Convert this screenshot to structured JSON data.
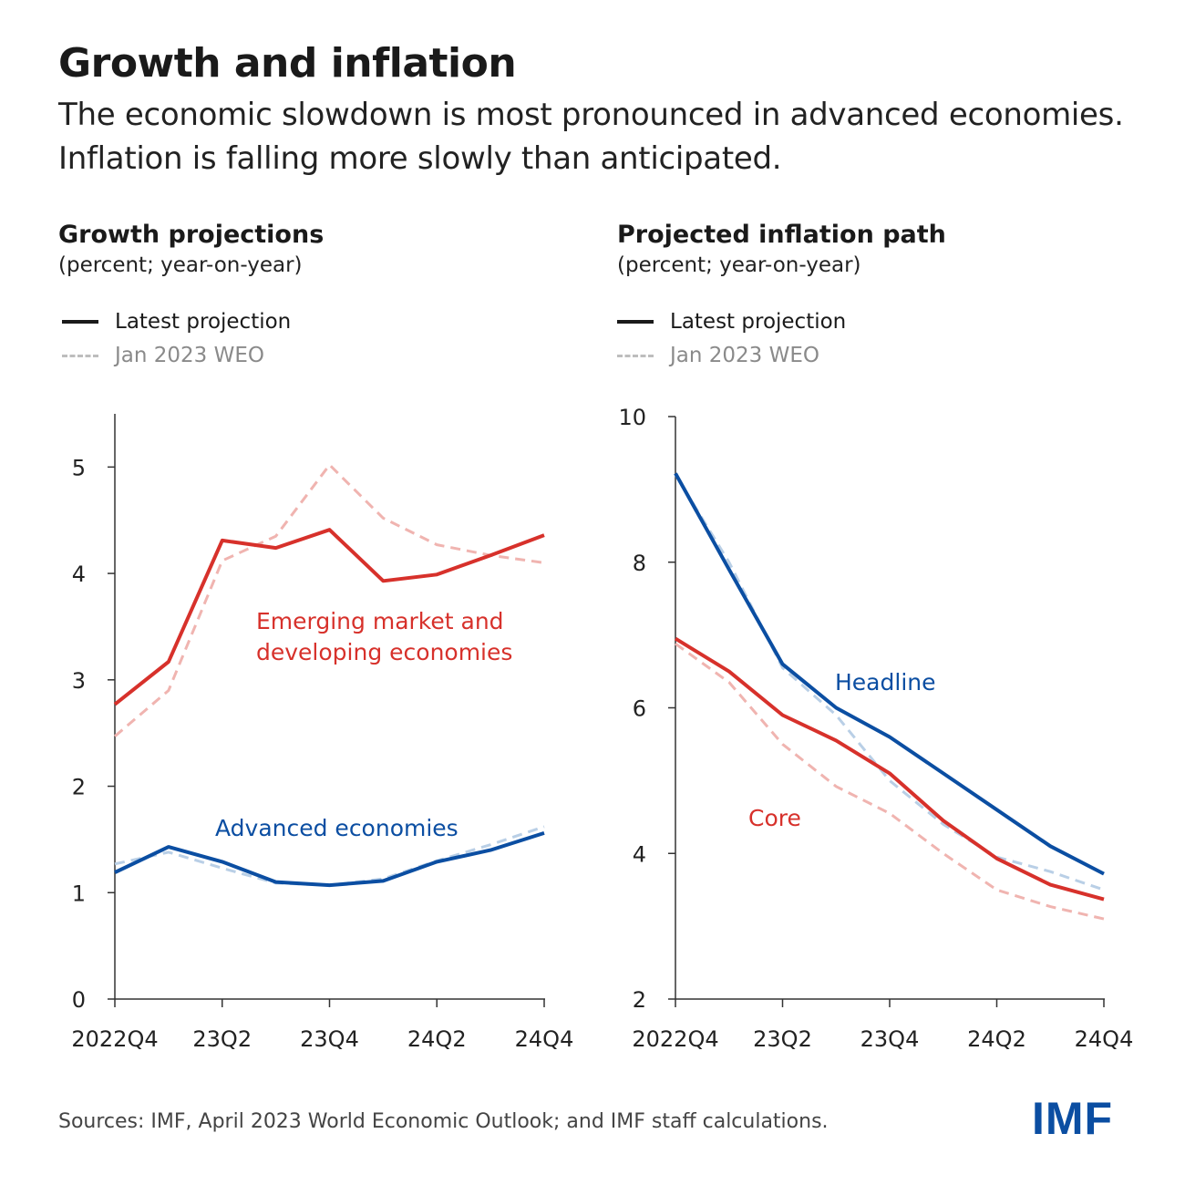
{
  "header": {
    "title": "Growth and inflation",
    "subtitle": "The economic slowdown is most pronounced in advanced economies. Inflation is falling more slowly than anticipated."
  },
  "legend": {
    "latest": "Latest projection",
    "weo": "Jan 2023 WEO"
  },
  "colors": {
    "red": "#d7312b",
    "red_dashed": "#f0b4b0",
    "blue": "#0b4ea2",
    "blue_dashed": "#b9cfe6",
    "axis": "#333333"
  },
  "footer": {
    "source": "Sources: IMF, April 2023 World Economic Outlook; and IMF staff calculations.",
    "logo": "IMF"
  },
  "chart_data": [
    {
      "id": "growth",
      "type": "line",
      "title": "Growth projections",
      "unit_label": "(percent; year-on-year)",
      "x": [
        "2022Q4",
        "23Q1",
        "23Q2",
        "23Q3",
        "23Q4",
        "24Q1",
        "24Q2",
        "24Q3",
        "24Q4"
      ],
      "x_tick_labels": [
        "2022Q4",
        "23Q2",
        "23Q4",
        "24Q2",
        "24Q4"
      ],
      "ylim": [
        0,
        5.5
      ],
      "yticks": [
        0,
        1,
        2,
        3,
        4,
        5
      ],
      "series": [
        {
          "name": "Emerging market and developing economies — Jan 2023 WEO",
          "dashed": true,
          "color": "red_dashed",
          "values": [
            2.47,
            2.9,
            4.12,
            4.35,
            5.02,
            4.52,
            4.27,
            4.17,
            4.1
          ]
        },
        {
          "name": "Emerging market and developing economies — Latest projection",
          "dashed": false,
          "color": "red",
          "values": [
            2.77,
            3.17,
            4.31,
            4.24,
            4.41,
            3.93,
            3.99,
            4.17,
            4.36
          ]
        },
        {
          "name": "Advanced economies — Jan 2023 WEO",
          "dashed": true,
          "color": "blue_dashed",
          "values": [
            1.27,
            1.38,
            1.23,
            1.09,
            1.07,
            1.13,
            1.3,
            1.45,
            1.62
          ]
        },
        {
          "name": "Advanced economies — Latest projection",
          "dashed": false,
          "color": "blue",
          "values": [
            1.19,
            1.43,
            1.29,
            1.1,
            1.07,
            1.11,
            1.29,
            1.4,
            1.56
          ]
        }
      ],
      "annotations": [
        {
          "text": "Emerging market and",
          "color": "red"
        },
        {
          "text": "developing economies",
          "color": "red"
        },
        {
          "text": "Advanced economies",
          "color": "blue"
        }
      ]
    },
    {
      "id": "inflation",
      "type": "line",
      "title": "Projected inflation path",
      "unit_label": "(percent; year-on-year)",
      "x": [
        "2022Q4",
        "23Q1",
        "23Q2",
        "23Q3",
        "23Q4",
        "24Q1",
        "24Q2",
        "24Q3",
        "24Q4"
      ],
      "x_tick_labels": [
        "2022Q4",
        "23Q2",
        "23Q4",
        "24Q2",
        "24Q4"
      ],
      "ylim": [
        2,
        10
      ],
      "yticks": [
        2,
        4,
        6,
        8,
        10
      ],
      "series": [
        {
          "name": "Headline — Jan 2023 WEO",
          "dashed": true,
          "color": "blue_dashed",
          "values": [
            9.2,
            8.0,
            6.55,
            5.9,
            5.0,
            4.4,
            3.95,
            3.75,
            3.5
          ]
        },
        {
          "name": "Headline — Latest projection",
          "dashed": false,
          "color": "blue",
          "values": [
            9.22,
            7.9,
            6.6,
            6.0,
            5.6,
            5.1,
            4.6,
            4.1,
            3.72
          ]
        },
        {
          "name": "Core — Jan 2023 WEO",
          "dashed": true,
          "color": "red_dashed",
          "values": [
            6.88,
            6.35,
            5.5,
            4.92,
            4.55,
            4.0,
            3.5,
            3.27,
            3.1
          ]
        },
        {
          "name": "Core — Latest projection",
          "dashed": false,
          "color": "red",
          "values": [
            6.95,
            6.5,
            5.9,
            5.55,
            5.1,
            4.45,
            3.93,
            3.57,
            3.37
          ]
        }
      ],
      "annotations": [
        {
          "text": "Headline",
          "color": "blue"
        },
        {
          "text": "Core",
          "color": "red"
        }
      ]
    }
  ]
}
